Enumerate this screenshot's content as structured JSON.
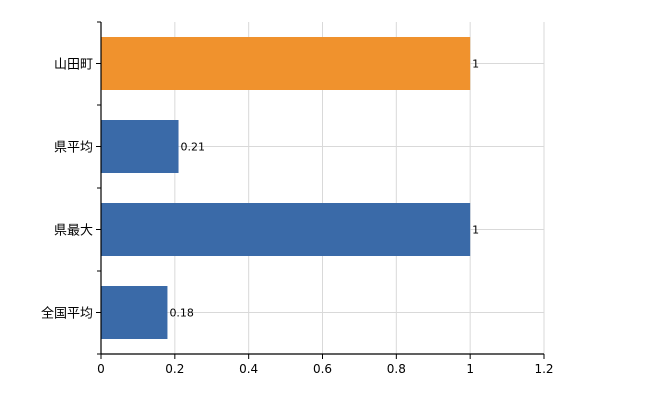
{
  "chart_data": {
    "type": "bar",
    "orientation": "horizontal",
    "categories": [
      "山田町",
      "県平均",
      "県最大",
      "全国平均"
    ],
    "values": [
      1,
      0.21,
      1,
      0.18
    ],
    "data_labels": [
      "1",
      "0.21",
      "1",
      "0.18"
    ],
    "bar_colors": [
      "#f0922d",
      "#3a6aa8",
      "#3a6aa8",
      "#3a6aa8"
    ],
    "xlim": [
      0,
      1.2
    ],
    "x_ticks": [
      0,
      0.2,
      0.4,
      0.6,
      0.8,
      1,
      1.2
    ],
    "x_tick_labels": [
      "0",
      "0.2",
      "0.4",
      "0.6",
      "0.8",
      "1",
      "1.2"
    ],
    "grid": true,
    "legend": "none",
    "title": "",
    "xlabel": "",
    "ylabel": ""
  }
}
